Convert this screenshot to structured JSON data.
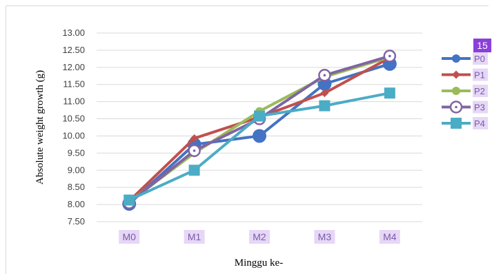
{
  "badge": {
    "label": "15"
  },
  "chart_data": {
    "type": "line",
    "title": "",
    "xlabel": "Minggu ke-",
    "ylabel": "Absolute weight growth (g)",
    "categories": [
      "M0",
      "M1",
      "M2",
      "M3",
      "M4"
    ],
    "ylim": [
      7.5,
      13.0
    ],
    "yticks": [
      "13.00",
      "12.50",
      "12.00",
      "11.50",
      "11.00",
      "10.50",
      "10.00",
      "9.50",
      "9.00",
      "8.50",
      "8.00",
      "7.50"
    ],
    "grid": true,
    "legend_position": "right",
    "series": [
      {
        "name": "P0",
        "color": "#4472c4",
        "marker": "circle-large",
        "values": [
          8.02,
          9.75,
          10.0,
          11.52,
          12.1
        ]
      },
      {
        "name": "P1",
        "color": "#c0504d",
        "marker": "diamond",
        "values": [
          8.1,
          9.93,
          10.55,
          11.25,
          12.28
        ]
      },
      {
        "name": "P2",
        "color": "#9bbb59",
        "marker": "circle-small",
        "values": [
          8.08,
          9.5,
          10.72,
          11.72,
          12.3
        ]
      },
      {
        "name": "P3",
        "color": "#8064a2",
        "marker": "circle-open",
        "values": [
          8.05,
          9.57,
          10.5,
          11.77,
          12.33
        ]
      },
      {
        "name": "P4",
        "color": "#4bacc6",
        "marker": "square",
        "values": [
          8.13,
          9.0,
          10.58,
          10.88,
          11.25
        ]
      }
    ]
  }
}
